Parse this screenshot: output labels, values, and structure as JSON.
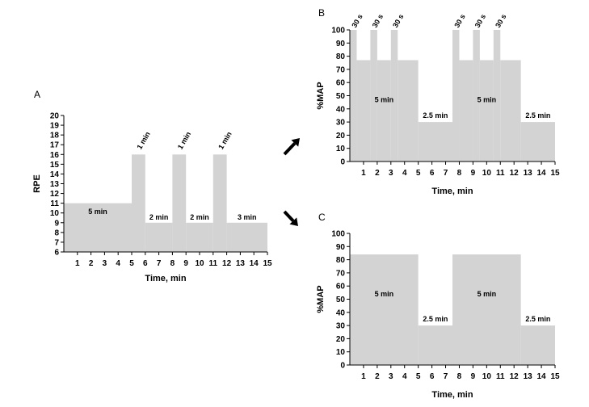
{
  "chart_data": [
    {
      "panel": "A",
      "type": "area",
      "xlabel": "Time, min",
      "ylabel": "RPE",
      "xlim": [
        0,
        15
      ],
      "ylim": [
        6,
        20
      ],
      "xticks": [
        1,
        2,
        3,
        4,
        5,
        6,
        7,
        8,
        9,
        10,
        11,
        12,
        13,
        14,
        15
      ],
      "yticks": [
        6,
        7,
        8,
        9,
        10,
        11,
        12,
        13,
        14,
        15,
        16,
        17,
        18,
        19,
        20
      ],
      "segments": [
        {
          "x0": 0,
          "x1": 5,
          "y": 11
        },
        {
          "x0": 5,
          "x1": 6,
          "y": 16
        },
        {
          "x0": 6,
          "x1": 8,
          "y": 9
        },
        {
          "x0": 8,
          "x1": 9,
          "y": 16
        },
        {
          "x0": 9,
          "x1": 11,
          "y": 9
        },
        {
          "x0": 11,
          "x1": 12,
          "y": 16
        },
        {
          "x0": 12,
          "x1": 15,
          "y": 9
        }
      ],
      "annotations": [
        {
          "text": "5 min",
          "x": 2.5,
          "y": 9.9,
          "rotate": false
        },
        {
          "text": "1 min",
          "x": 5.5,
          "y": 16.3,
          "rotate": true
        },
        {
          "text": "2 min",
          "x": 7.0,
          "y": 9.3,
          "rotate": false
        },
        {
          "text": "1 min",
          "x": 8.5,
          "y": 16.3,
          "rotate": true
        },
        {
          "text": "2 min",
          "x": 10.0,
          "y": 9.3,
          "rotate": false
        },
        {
          "text": "1 min",
          "x": 11.5,
          "y": 16.3,
          "rotate": true
        },
        {
          "text": "3 min",
          "x": 13.5,
          "y": 9.3,
          "rotate": false
        }
      ]
    },
    {
      "panel": "B",
      "type": "area",
      "xlabel": "Time, min",
      "ylabel": "%MAP",
      "xlim": [
        0,
        15
      ],
      "ylim": [
        0,
        100
      ],
      "xticks": [
        1,
        2,
        3,
        4,
        5,
        6,
        7,
        8,
        9,
        10,
        11,
        12,
        13,
        14,
        15
      ],
      "yticks": [
        0,
        10,
        20,
        30,
        40,
        50,
        60,
        70,
        80,
        90,
        100
      ],
      "segments": [
        {
          "x0": 0,
          "x1": 0.5,
          "y": 100
        },
        {
          "x0": 0.5,
          "x1": 1.5,
          "y": 77
        },
        {
          "x0": 1.5,
          "x1": 2.0,
          "y": 100
        },
        {
          "x0": 2.0,
          "x1": 3.0,
          "y": 77
        },
        {
          "x0": 3.0,
          "x1": 3.5,
          "y": 100
        },
        {
          "x0": 3.5,
          "x1": 5.0,
          "y": 77
        },
        {
          "x0": 5.0,
          "x1": 7.5,
          "y": 30
        },
        {
          "x0": 7.5,
          "x1": 8.0,
          "y": 100
        },
        {
          "x0": 8.0,
          "x1": 9.0,
          "y": 77
        },
        {
          "x0": 9.0,
          "x1": 9.5,
          "y": 100
        },
        {
          "x0": 9.5,
          "x1": 10.5,
          "y": 77
        },
        {
          "x0": 10.5,
          "x1": 11.0,
          "y": 100
        },
        {
          "x0": 11.0,
          "x1": 12.5,
          "y": 77
        },
        {
          "x0": 12.5,
          "x1": 15.0,
          "y": 30
        }
      ],
      "annotations": [
        {
          "text": "30 s",
          "x": 0.25,
          "y": 100,
          "rotate": true
        },
        {
          "text": "30 s",
          "x": 1.75,
          "y": 100,
          "rotate": true
        },
        {
          "text": "30 s",
          "x": 3.25,
          "y": 100,
          "rotate": true
        },
        {
          "text": "30 s",
          "x": 7.75,
          "y": 100,
          "rotate": true
        },
        {
          "text": "30 s",
          "x": 9.25,
          "y": 100,
          "rotate": true
        },
        {
          "text": "30 s",
          "x": 10.75,
          "y": 100,
          "rotate": true
        },
        {
          "text": "5 min",
          "x": 2.5,
          "y": 45,
          "rotate": false
        },
        {
          "text": "2.5 min",
          "x": 6.25,
          "y": 33,
          "rotate": false
        },
        {
          "text": "5 min",
          "x": 10.0,
          "y": 45,
          "rotate": false
        },
        {
          "text": "2.5 min",
          "x": 13.75,
          "y": 33,
          "rotate": false
        }
      ]
    },
    {
      "panel": "C",
      "type": "area",
      "xlabel": "Time, min",
      "ylabel": "%MAP",
      "xlim": [
        0,
        15
      ],
      "ylim": [
        0,
        100
      ],
      "xticks": [
        1,
        2,
        3,
        4,
        5,
        6,
        7,
        8,
        9,
        10,
        11,
        12,
        13,
        14,
        15
      ],
      "yticks": [
        0,
        10,
        20,
        30,
        40,
        50,
        60,
        70,
        80,
        90,
        100
      ],
      "segments": [
        {
          "x0": 0,
          "x1": 5.0,
          "y": 84
        },
        {
          "x0": 5.0,
          "x1": 7.5,
          "y": 30
        },
        {
          "x0": 7.5,
          "x1": 12.5,
          "y": 84
        },
        {
          "x0": 12.5,
          "x1": 15.0,
          "y": 30
        }
      ],
      "annotations": [
        {
          "text": "5 min",
          "x": 2.5,
          "y": 52,
          "rotate": false
        },
        {
          "text": "2.5 min",
          "x": 6.25,
          "y": 33,
          "rotate": false
        },
        {
          "text": "5 min",
          "x": 10.0,
          "y": 52,
          "rotate": false
        },
        {
          "text": "2.5 min",
          "x": 13.75,
          "y": 33,
          "rotate": false
        }
      ]
    }
  ],
  "fill_color": "#d3d3d3",
  "arrow_color": "#000000"
}
